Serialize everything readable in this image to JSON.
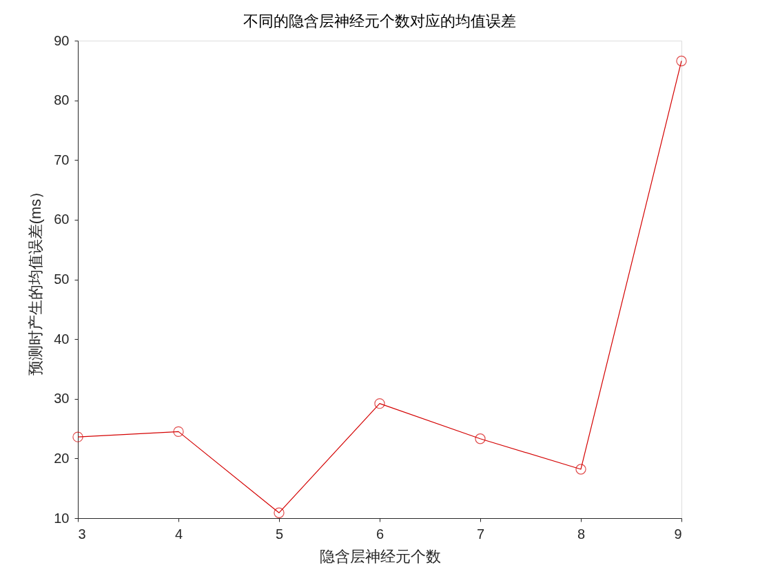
{
  "chart_data": {
    "type": "line",
    "title": "不同的隐含层神经元个数对应的均值误差",
    "xlabel": "隐含层神经元个数",
    "ylabel": "预测时产生的均值误差(ms）",
    "x": [
      3,
      4,
      5,
      6,
      7,
      8,
      9
    ],
    "series": [
      {
        "color": "#d40000",
        "values": [
          23.6,
          24.5,
          10.9,
          29.2,
          23.3,
          18.2,
          86.6
        ]
      }
    ],
    "xlim": [
      3,
      9
    ],
    "xticks": [
      3,
      4,
      5,
      6,
      7,
      8,
      9
    ],
    "ylim": [
      10,
      90
    ],
    "yticks": [
      10,
      20,
      30,
      40,
      50,
      60,
      70,
      80,
      90
    ],
    "grid": false,
    "marker": "circle",
    "line_style": "solid"
  }
}
